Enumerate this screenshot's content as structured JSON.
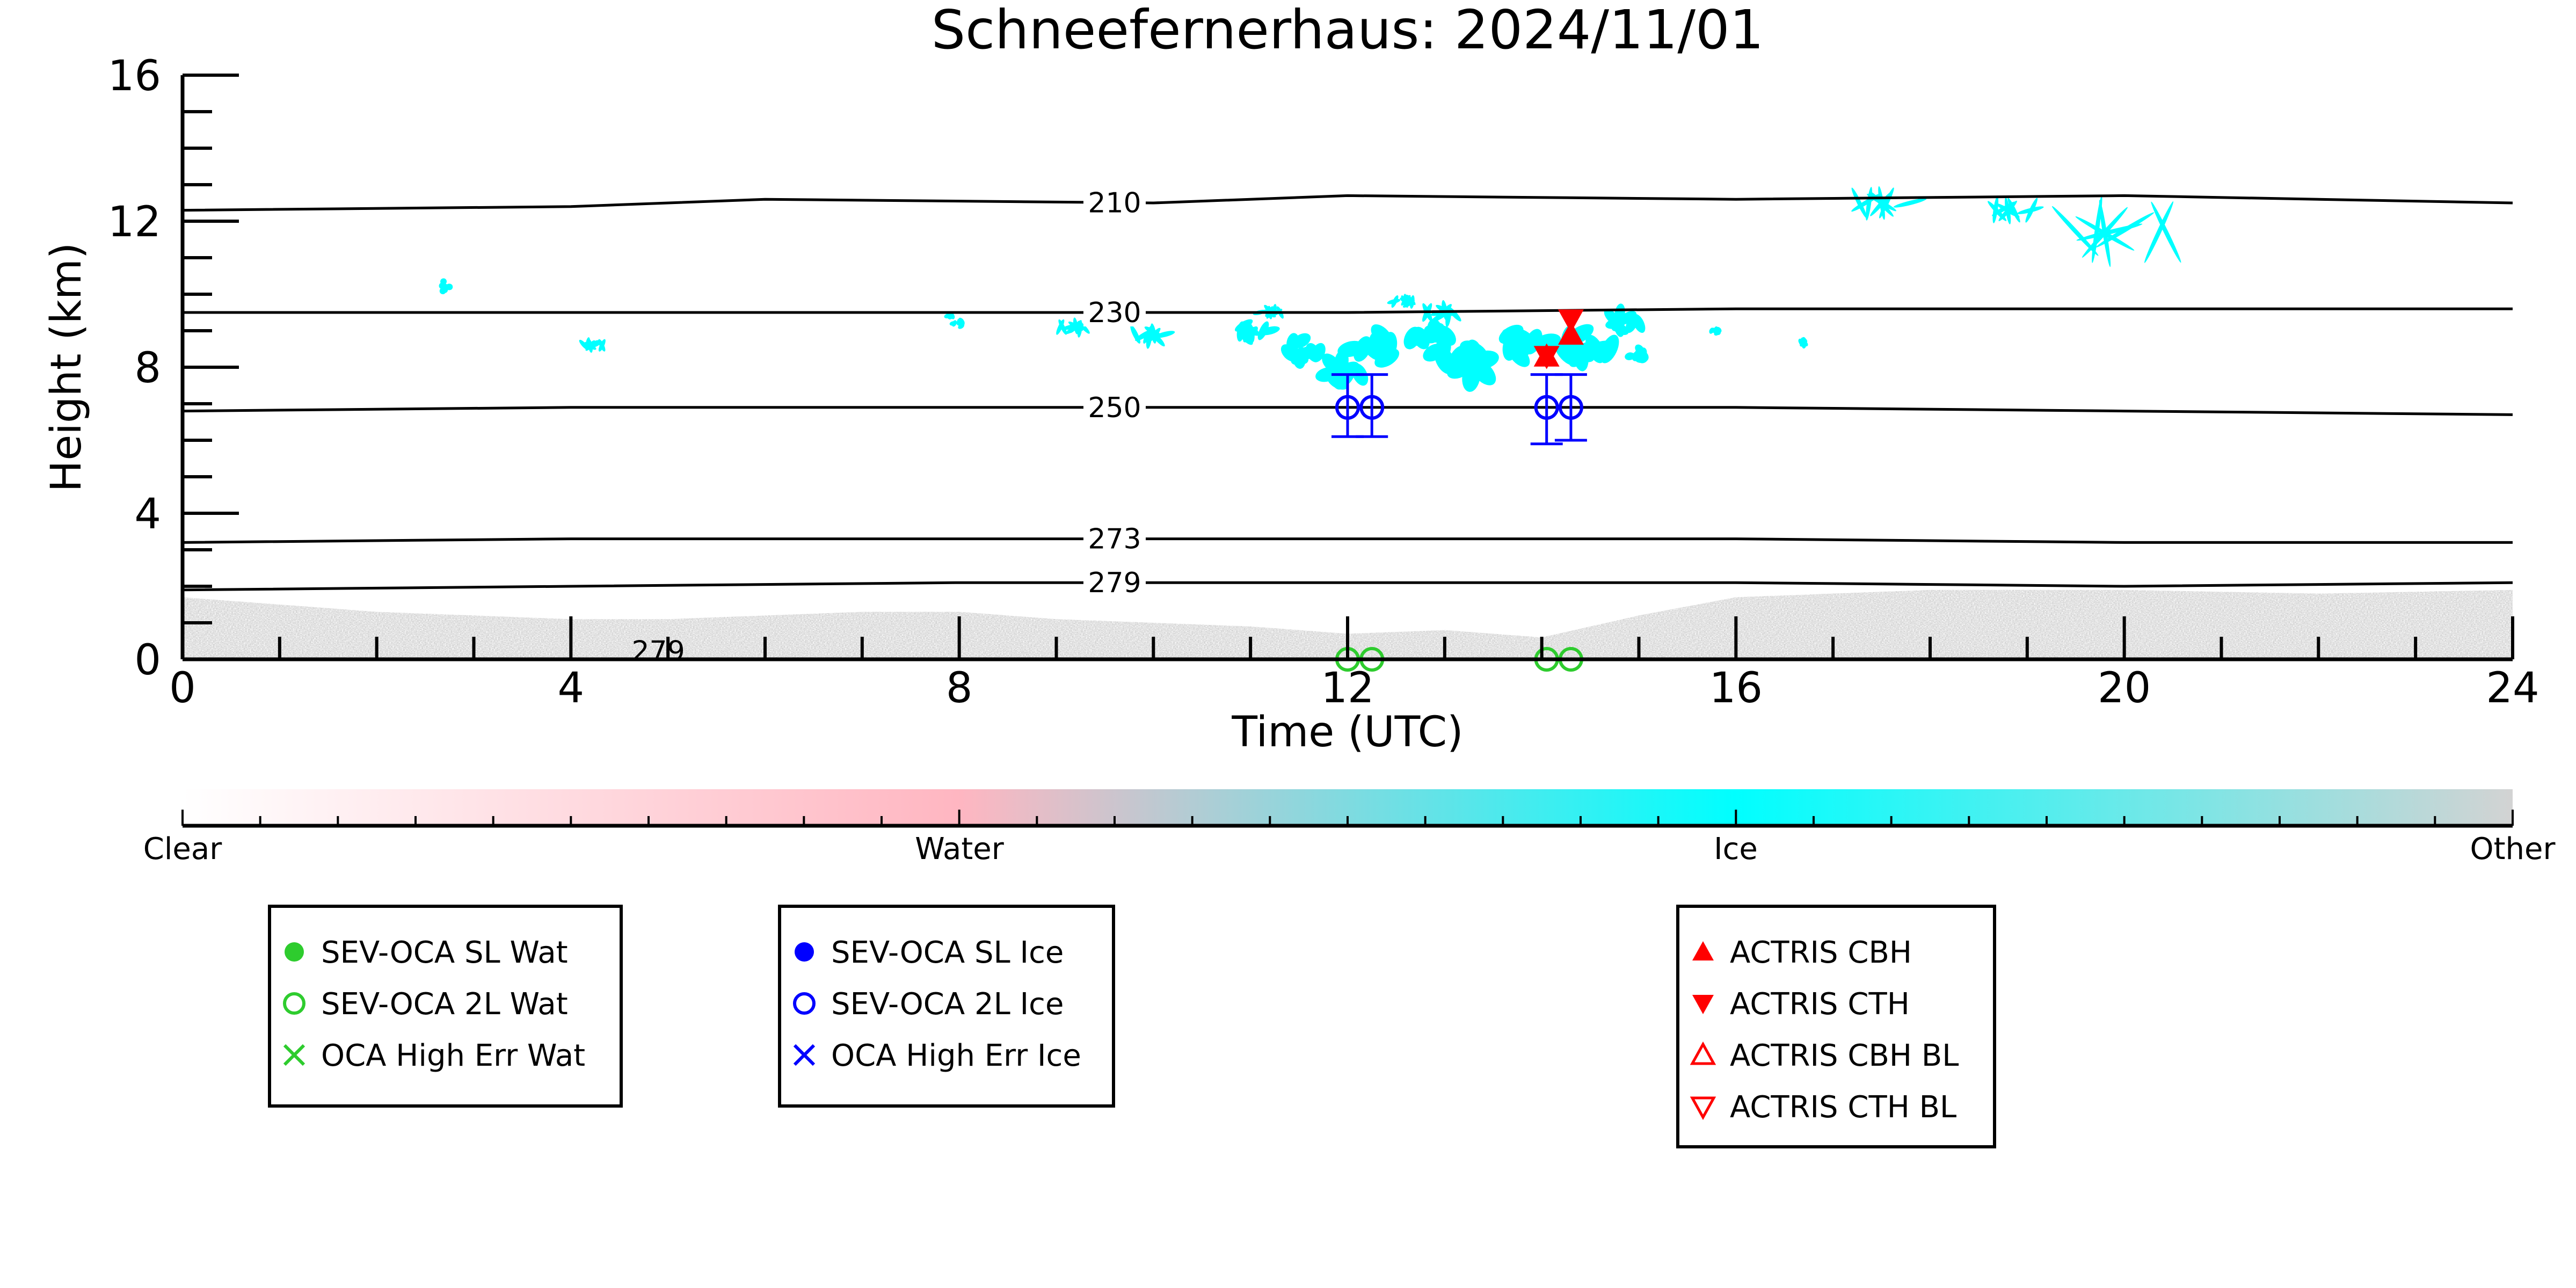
{
  "chart_data": {
    "type": "scatter",
    "title": "Schneefernerhaus: 2024/11/01",
    "xlabel": "Time (UTC)",
    "ylabel": "Height (km)",
    "xlim": [
      0,
      24
    ],
    "ylim": [
      0,
      16
    ],
    "x_ticks": [
      0,
      4,
      8,
      12,
      16,
      20,
      24
    ],
    "y_ticks": [
      0,
      4,
      8,
      12,
      16
    ],
    "x_tick_labels": [
      "0",
      "4",
      "8",
      "12",
      "16",
      "20",
      "24"
    ],
    "y_tick_labels": [
      "0",
      "4",
      "8",
      "12",
      "16"
    ],
    "colorbar": {
      "labels": [
        "Clear",
        "Water",
        "Ice",
        "Other"
      ],
      "colors": [
        "#ffffff",
        "#ffb6c1",
        "#00ffff",
        "#d3d3d3"
      ]
    },
    "contours": [
      {
        "label": "210",
        "x": [
          0,
          4,
          6,
          10,
          12,
          16,
          20,
          24
        ],
        "y": [
          12.3,
          12.4,
          12.6,
          12.5,
          12.7,
          12.6,
          12.7,
          12.5
        ]
      },
      {
        "label": "230",
        "x": [
          0,
          4,
          8,
          12,
          16,
          20,
          24
        ],
        "y": [
          9.5,
          9.5,
          9.5,
          9.5,
          9.6,
          9.6,
          9.6
        ]
      },
      {
        "label": "250",
        "x": [
          0,
          4,
          8,
          12,
          16,
          20,
          24
        ],
        "y": [
          6.8,
          6.9,
          6.9,
          6.9,
          6.9,
          6.8,
          6.7
        ]
      },
      {
        "label": "273",
        "x": [
          0,
          4,
          8,
          12,
          16,
          20,
          24
        ],
        "y": [
          3.2,
          3.3,
          3.3,
          3.3,
          3.3,
          3.2,
          3.2
        ]
      },
      {
        "label": "279",
        "x": [
          0,
          4,
          8,
          12,
          16,
          20,
          24
        ],
        "y": [
          1.9,
          2.0,
          2.1,
          2.1,
          2.1,
          2.0,
          2.1
        ]
      }
    ],
    "contour_label_x": 9.6,
    "stray_label": {
      "text": "279",
      "x": 4.9,
      "y": 0.05
    },
    "series": [
      {
        "name": "SEV-OCA 2L Ice",
        "color": "#0000ff",
        "marker": "circle-open",
        "x": [
          12.0,
          12.25,
          14.05,
          14.3
        ],
        "y": [
          6.9,
          6.9,
          6.9,
          6.9
        ],
        "err_low": [
          6.1,
          6.1,
          5.9,
          6.0
        ],
        "err_high": [
          7.8,
          7.8,
          7.8,
          7.8
        ]
      },
      {
        "name": "SEV-OCA 2L Wat",
        "color": "#2ecc2e",
        "marker": "circle-open",
        "x": [
          12.0,
          12.25,
          14.05,
          14.3
        ],
        "y": [
          0.0,
          0.0,
          0.0,
          0.0
        ]
      },
      {
        "name": "ACTRIS CBH",
        "color": "#ff0000",
        "marker": "triangle-up",
        "x": [
          14.05,
          14.3
        ],
        "y": [
          8.3,
          8.9
        ]
      },
      {
        "name": "ACTRIS CTH",
        "color": "#ff0000",
        "marker": "triangle-down",
        "x": [
          14.05,
          14.3
        ],
        "y": [
          8.3,
          9.3
        ]
      }
    ],
    "legends": [
      {
        "entries": [
          {
            "label": "SEV-OCA SL Wat",
            "color": "#2ecc2e",
            "marker": "circle-filled"
          },
          {
            "label": "SEV-OCA 2L Wat",
            "color": "#2ecc2e",
            "marker": "circle-open"
          },
          {
            "label": "OCA High Err Wat",
            "color": "#2ecc2e",
            "marker": "x"
          }
        ]
      },
      {
        "entries": [
          {
            "label": "SEV-OCA SL Ice",
            "color": "#0000ff",
            "marker": "circle-filled"
          },
          {
            "label": "SEV-OCA 2L Ice",
            "color": "#0000ff",
            "marker": "circle-open"
          },
          {
            "label": "OCA High Err Ice",
            "color": "#0000ff",
            "marker": "x"
          }
        ]
      },
      {
        "entries": [
          {
            "label": "ACTRIS CBH",
            "color": "#ff0000",
            "marker": "triangle-up"
          },
          {
            "label": "ACTRIS CTH",
            "color": "#ff0000",
            "marker": "triangle-down"
          },
          {
            "label": "ACTRIS CBH BL",
            "color": "#ff0000",
            "marker": "triangle-up-open"
          },
          {
            "label": "ACTRIS CTH BL",
            "color": "#ff0000",
            "marker": "triangle-down-open"
          }
        ]
      }
    ]
  }
}
